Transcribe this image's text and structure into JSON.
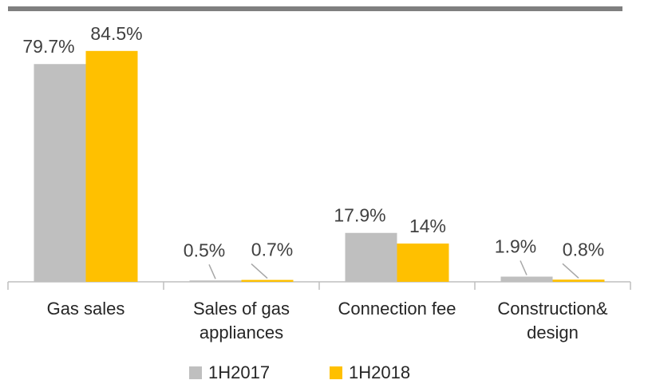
{
  "chart_data": {
    "type": "bar",
    "categories": [
      "Gas sales",
      "Sales of gas appliances",
      "Connection fee",
      "Construction& design"
    ],
    "series": [
      {
        "name": "1H2017",
        "color": "#bfbfbf",
        "values": [
          79.7,
          0.5,
          17.9,
          1.9
        ],
        "value_labels": [
          "79.7%",
          "0.5%",
          "17.9%",
          "1.9%"
        ]
      },
      {
        "name": "1H2018",
        "color": "#ffc000",
        "values": [
          84.5,
          0.7,
          14,
          0.8
        ],
        "value_labels": [
          "84.5%",
          "0.7%",
          "14%",
          "0.8%"
        ]
      }
    ],
    "ylim": [
      0,
      90
    ],
    "legend": "bottom"
  }
}
